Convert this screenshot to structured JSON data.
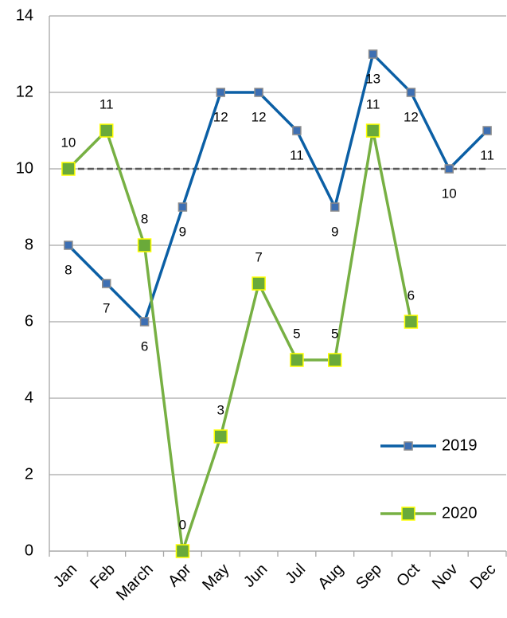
{
  "chart_data": {
    "type": "line",
    "categories": [
      "Jan",
      "Feb",
      "March",
      "Apr",
      "May",
      "Jun",
      "Jul",
      "Aug",
      "Sep",
      "Oct",
      "Nov",
      "Dec"
    ],
    "series": [
      {
        "name": "2019",
        "color": "#0b5fa5",
        "marker_color": "#3d6fb3",
        "marker_edge": "#8c8c8c",
        "values": [
          8,
          7,
          6,
          9,
          12,
          12,
          11,
          9,
          13,
          12,
          10,
          11
        ]
      },
      {
        "name": "2020",
        "color": "#77b043",
        "marker_color": "#6aaa3a",
        "marker_edge": "#ffff00",
        "values": [
          10,
          11,
          8,
          0,
          3,
          7,
          5,
          5,
          11,
          6,
          null,
          null
        ]
      }
    ],
    "reference_line": 10,
    "ylim": [
      0,
      14
    ],
    "yticks": [
      0,
      2,
      4,
      6,
      8,
      10,
      12,
      14
    ],
    "grid": true,
    "legend": "right"
  }
}
